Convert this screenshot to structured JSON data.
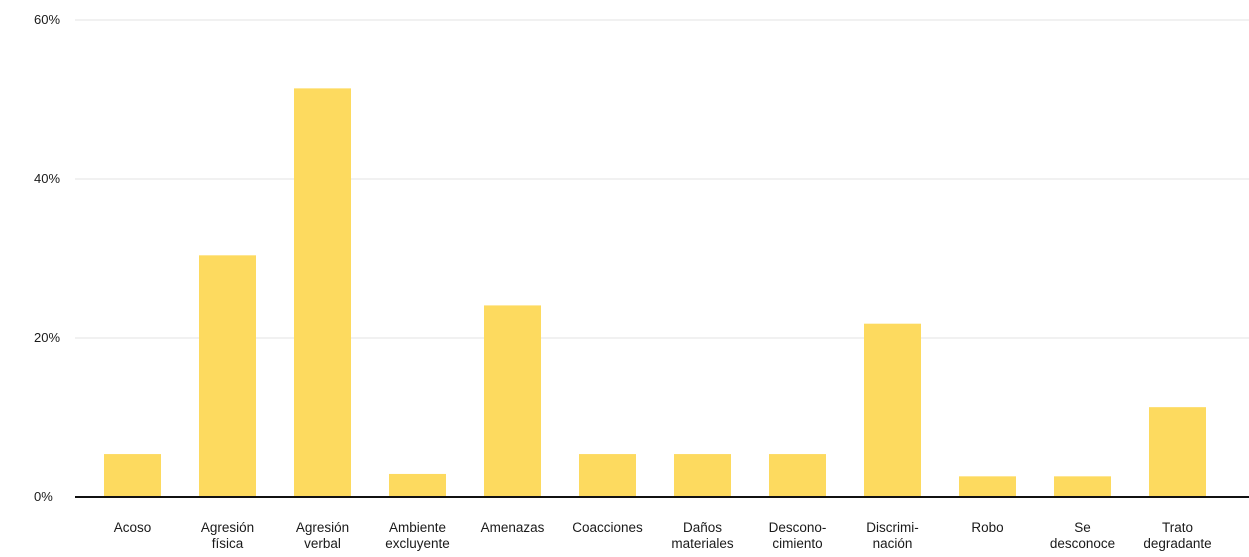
{
  "chart_data": {
    "type": "bar",
    "title": "",
    "xlabel": "",
    "ylabel": "",
    "ylim": [
      0,
      60
    ],
    "y_ticks": [
      0,
      20,
      40,
      60
    ],
    "y_tick_labels": [
      "0%",
      "20%",
      "40%",
      "60%"
    ],
    "grid": true,
    "legend": "none",
    "categories": [
      [
        "Acoso"
      ],
      [
        "Agresión",
        "física"
      ],
      [
        "Agresión",
        "verbal"
      ],
      [
        "Ambiente",
        "excluyente"
      ],
      [
        "Amenazas"
      ],
      [
        "Coacciones"
      ],
      [
        "Daños",
        "materiales"
      ],
      [
        "Descono-",
        "cimiento"
      ],
      [
        "Discrimi-",
        "nación"
      ],
      [
        "Robo"
      ],
      [
        "Se",
        "desconoce"
      ],
      [
        "Trato",
        "degradante"
      ]
    ],
    "values": [
      5.4,
      30.4,
      51.4,
      2.9,
      24.1,
      5.4,
      5.4,
      5.4,
      21.8,
      2.6,
      2.6,
      11.3
    ],
    "colors": {
      "bar": "#FDDA5F",
      "grid": "#e3e3e3",
      "axis": "#111111"
    }
  }
}
